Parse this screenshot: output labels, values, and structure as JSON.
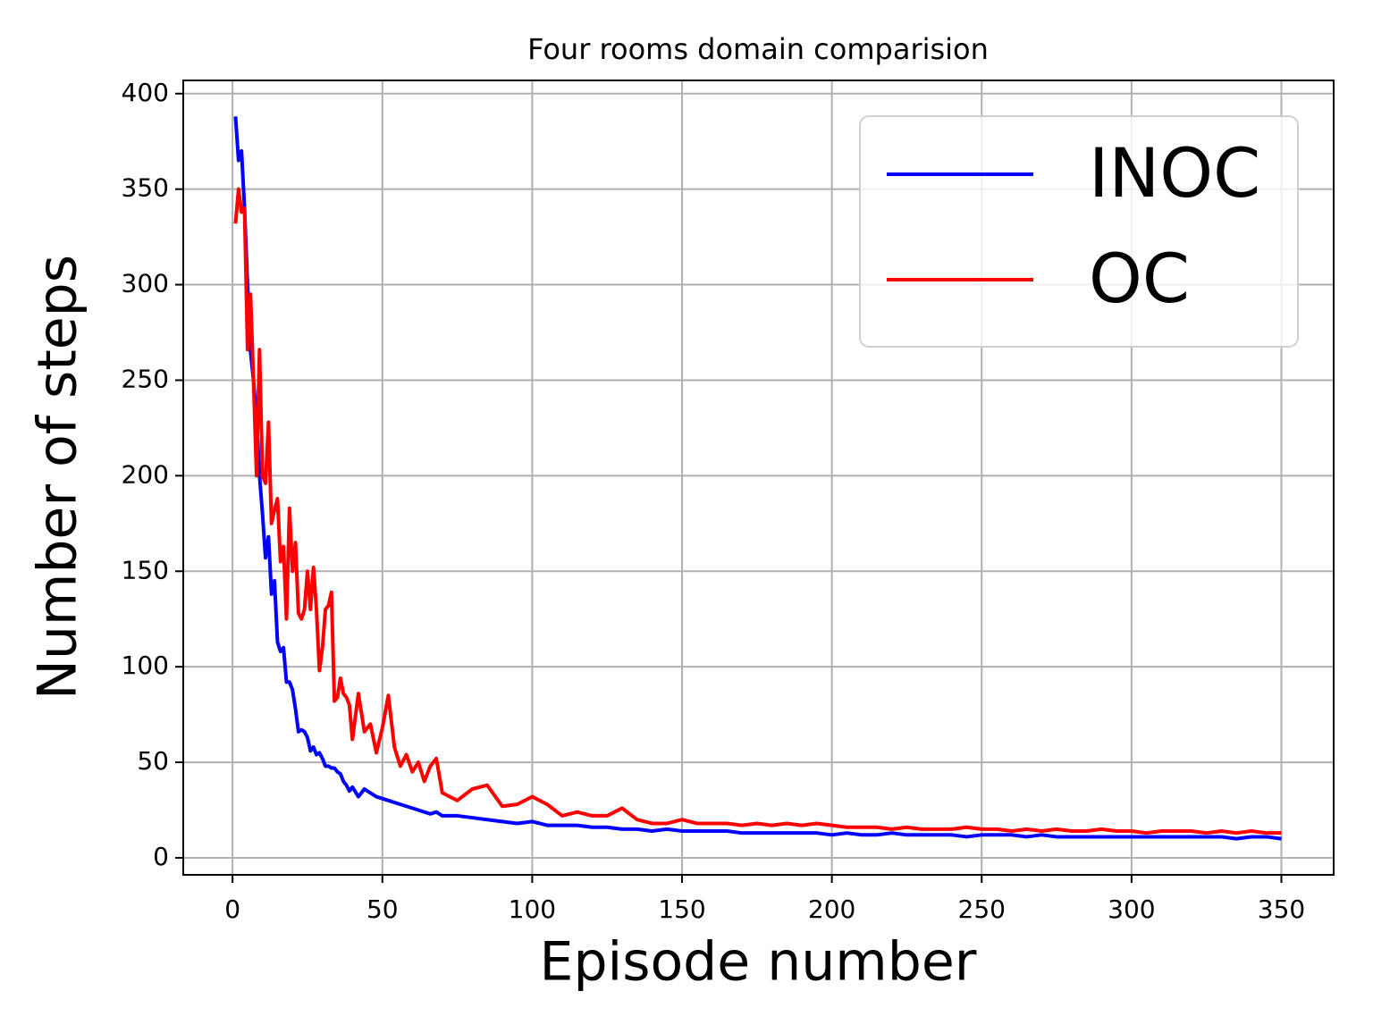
{
  "chart_data": {
    "type": "line",
    "title": "Four rooms domain comparision",
    "xlabel": "Episode number",
    "ylabel": "Number of steps",
    "x": [
      1,
      2,
      3,
      4,
      5,
      6,
      7,
      8,
      9,
      10,
      11,
      12,
      13,
      14,
      15,
      16,
      17,
      18,
      19,
      20,
      21,
      22,
      23,
      24,
      25,
      26,
      27,
      28,
      29,
      30,
      31,
      32,
      33,
      34,
      35,
      36,
      37,
      38,
      39,
      40,
      42,
      44,
      46,
      48,
      50,
      52,
      54,
      56,
      58,
      60,
      62,
      64,
      66,
      68,
      70,
      75,
      80,
      85,
      90,
      95,
      100,
      105,
      110,
      115,
      120,
      125,
      130,
      135,
      140,
      145,
      150,
      155,
      160,
      165,
      170,
      175,
      180,
      185,
      190,
      195,
      200,
      205,
      210,
      215,
      220,
      225,
      230,
      235,
      240,
      245,
      250,
      255,
      260,
      265,
      270,
      275,
      280,
      285,
      290,
      295,
      300,
      305,
      310,
      315,
      320,
      325,
      330,
      335,
      340,
      345,
      350
    ],
    "series": [
      {
        "name": "INOC",
        "color": "#0000ff",
        "values": [
          388,
          365,
          370,
          340,
          300,
          265,
          250,
          230,
          200,
          180,
          157,
          168,
          138,
          145,
          113,
          108,
          110,
          92,
          92,
          88,
          78,
          66,
          67,
          66,
          63,
          56,
          58,
          54,
          55,
          52,
          48,
          48,
          47,
          47,
          45,
          44,
          40,
          38,
          35,
          37,
          32,
          36,
          34,
          32,
          31,
          30,
          29,
          28,
          27,
          26,
          25,
          24,
          23,
          24,
          22,
          22,
          21,
          20,
          19,
          18,
          19,
          17,
          17,
          17,
          16,
          16,
          15,
          15,
          14,
          15,
          14,
          14,
          14,
          14,
          13,
          13,
          13,
          13,
          13,
          13,
          12,
          13,
          12,
          12,
          13,
          12,
          12,
          12,
          12,
          11,
          12,
          12,
          12,
          11,
          12,
          11,
          11,
          11,
          11,
          11,
          11,
          11,
          11,
          11,
          11,
          11,
          11,
          10,
          11,
          11,
          10
        ]
      },
      {
        "name": "OC",
        "color": "#ff0000",
        "values": [
          332,
          350,
          338,
          340,
          266,
          295,
          250,
          200,
          266,
          200,
          196,
          228,
          175,
          182,
          188,
          155,
          163,
          125,
          183,
          150,
          165,
          128,
          125,
          130,
          150,
          130,
          152,
          130,
          98,
          110,
          130,
          132,
          139,
          82,
          84,
          94,
          86,
          84,
          80,
          62,
          86,
          66,
          70,
          55,
          68,
          85,
          58,
          48,
          54,
          45,
          50,
          40,
          48,
          52,
          34,
          30,
          36,
          38,
          27,
          28,
          32,
          28,
          22,
          24,
          22,
          22,
          26,
          20,
          18,
          18,
          20,
          18,
          18,
          18,
          17,
          18,
          17,
          18,
          17,
          18,
          17,
          16,
          16,
          16,
          15,
          16,
          15,
          15,
          15,
          16,
          15,
          15,
          14,
          15,
          14,
          15,
          14,
          14,
          15,
          14,
          14,
          13,
          14,
          14,
          14,
          13,
          14,
          13,
          14,
          13,
          13
        ]
      }
    ],
    "xlim": [
      -16.45,
      367.45
    ],
    "ylim": [
      -8.9,
      406.9
    ],
    "xticks": [
      0,
      50,
      100,
      150,
      200,
      250,
      300,
      350
    ],
    "yticks": [
      0,
      50,
      100,
      150,
      200,
      250,
      300,
      350,
      400
    ],
    "grid": true,
    "legend": "upper right"
  }
}
